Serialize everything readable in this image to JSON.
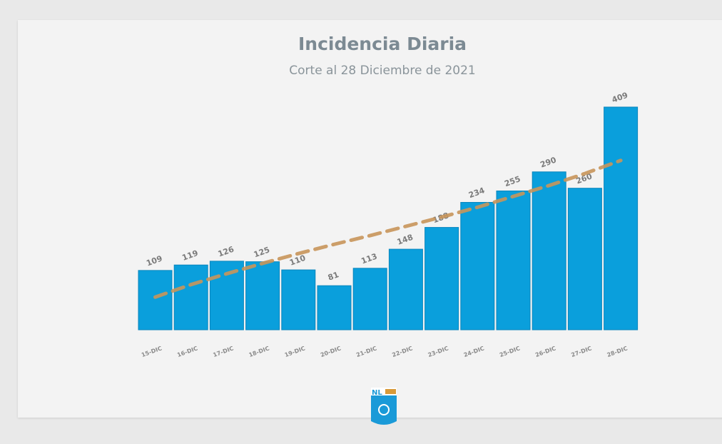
{
  "chart_data": {
    "type": "bar",
    "title": "Incidencia Diaria",
    "subtitle": "Corte al 28 Diciembre de 2021",
    "categories": [
      "15-DIC",
      "16-DIC",
      "17-DIC",
      "18-DIC",
      "19-DIC",
      "20-DIC",
      "21-DIC",
      "22-DIC",
      "23-DIC",
      "24-DIC",
      "25-DIC",
      "26-DIC",
      "27-DIC",
      "28-DIC"
    ],
    "values": [
      109,
      119,
      126,
      125,
      110,
      81,
      113,
      148,
      188,
      234,
      255,
      290,
      260,
      409
    ],
    "trendline": {
      "style": "dashed",
      "values": [
        60,
        83,
        103,
        122,
        140,
        157,
        173,
        190,
        207,
        225,
        245,
        265,
        287,
        311
      ]
    },
    "ylim": [
      0,
      409
    ],
    "grid": false,
    "colors": {
      "bar": "#0a9fdc",
      "trendline": "#c8955a",
      "title": "#7c8a93"
    }
  },
  "logo": {
    "text": "NL"
  }
}
